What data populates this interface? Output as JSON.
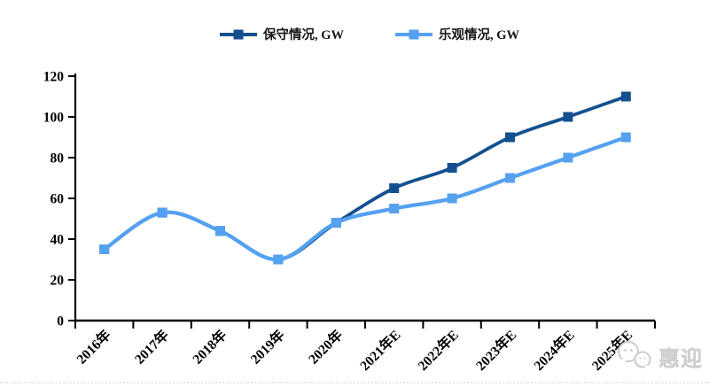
{
  "page": {
    "background": "#ffffff"
  },
  "watermark": {
    "text": "惠迎",
    "icon": "wechat-icon",
    "color": "#cfcfcf"
  },
  "chart_data": {
    "type": "line",
    "line_style": "smooth",
    "marker": "square",
    "categories": [
      "2016年",
      "2017年",
      "2018年",
      "2019年",
      "2020年",
      "2021年E",
      "2022年E",
      "2023年E",
      "2024年E",
      "2025年E"
    ],
    "series": [
      {
        "name": "保守情况, GW",
        "color": "#14508F",
        "values": [
          35,
          53,
          44,
          30,
          48,
          65,
          75,
          90,
          100,
          110
        ]
      },
      {
        "name": "乐观情况, GW",
        "color": "#55A1F1",
        "values": [
          35,
          53,
          44,
          30,
          48,
          55,
          60,
          70,
          80,
          90
        ]
      }
    ],
    "title": "",
    "xlabel": "",
    "ylabel": "",
    "ylim": [
      0,
      120
    ],
    "yticks": [
      0,
      20,
      40,
      60,
      80,
      100,
      120
    ],
    "grid": false,
    "legend_position": "top",
    "axis_color": "#000000",
    "tick_label_color": "#000000",
    "x_label_rotation": -45
  }
}
